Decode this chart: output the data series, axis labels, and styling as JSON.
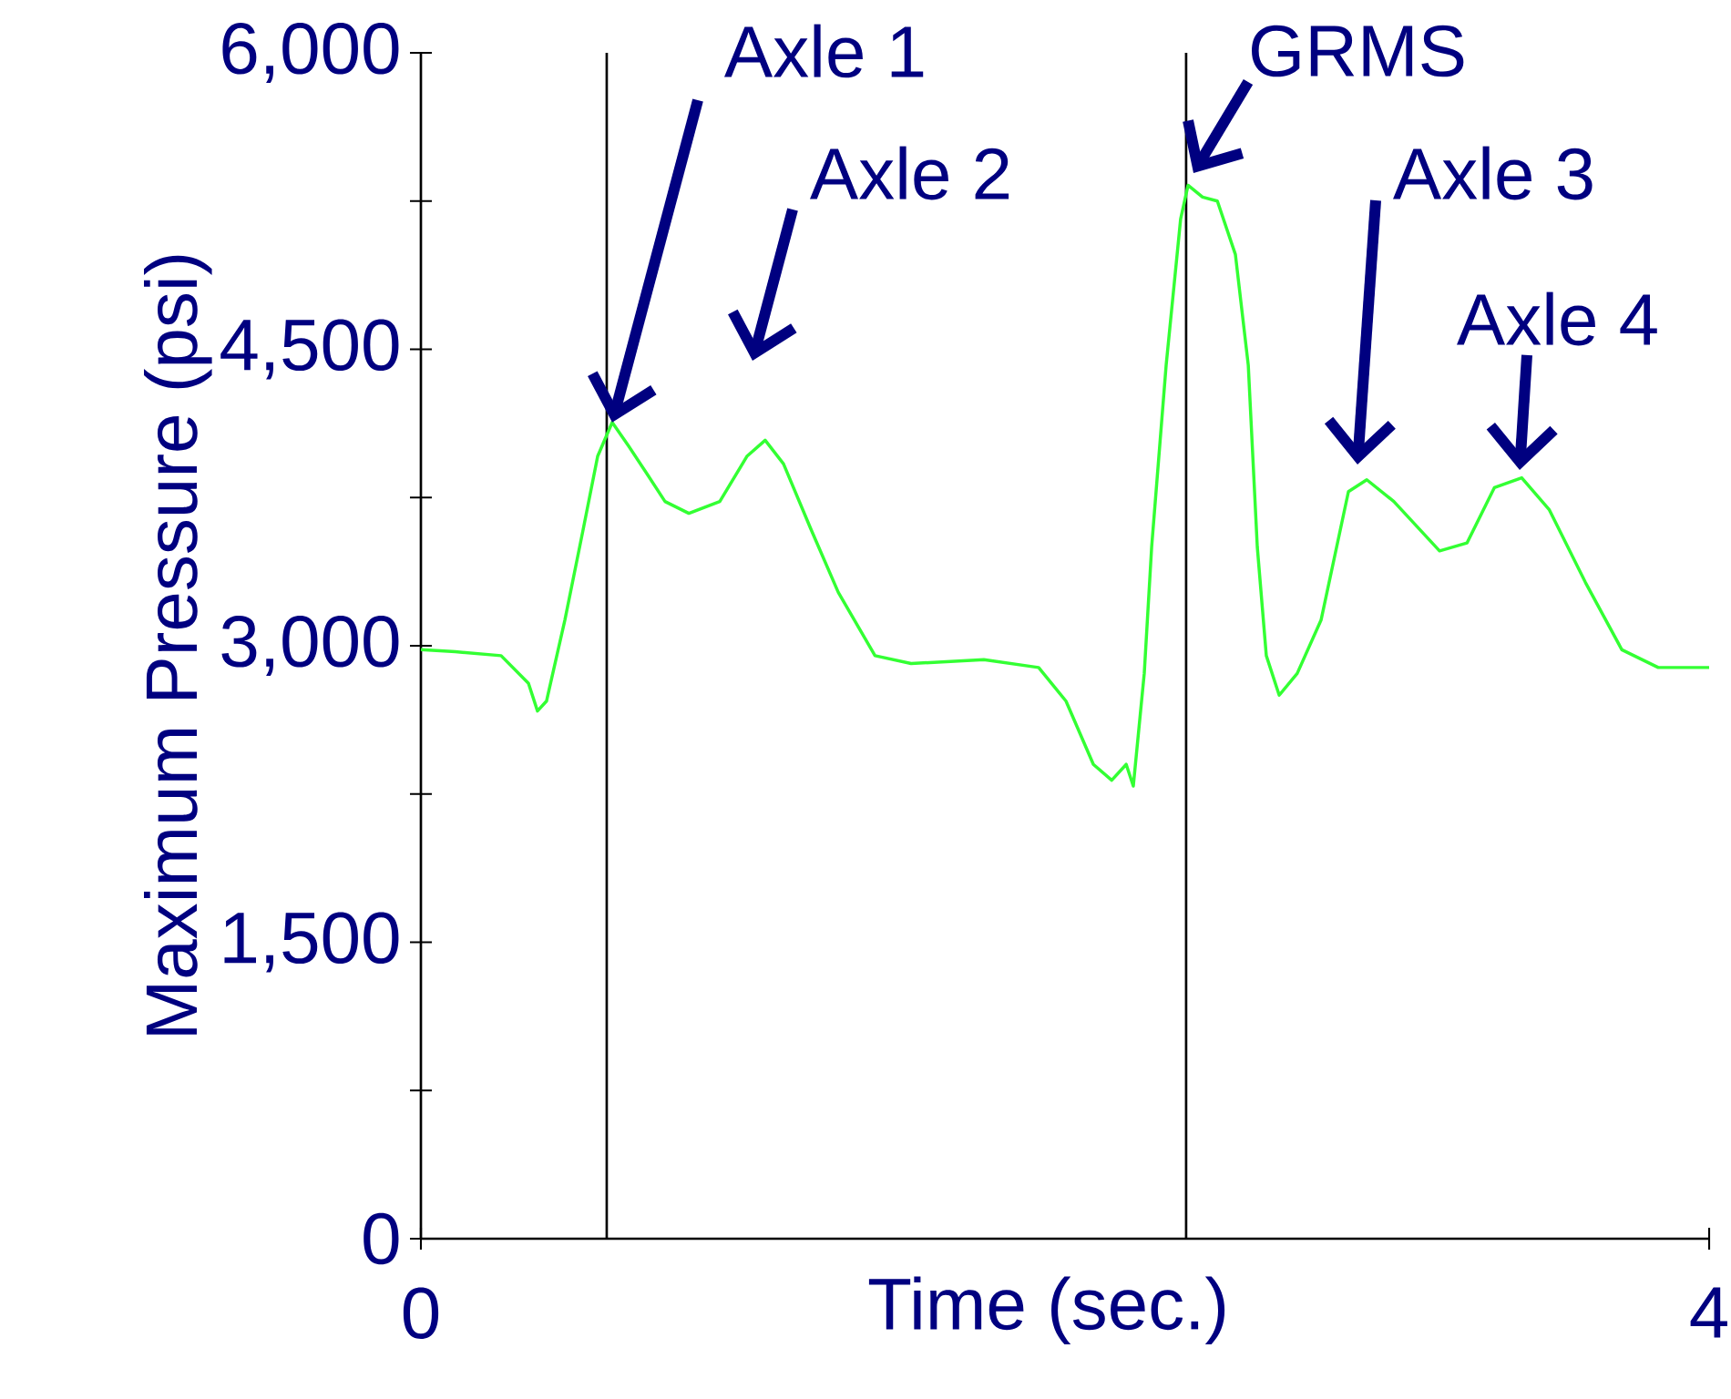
{
  "chart_data": {
    "type": "line",
    "xlabel": "Time (sec.)",
    "ylabel": "Maximum Pressure (psi)",
    "xlim": [
      0,
      4
    ],
    "xticks": [
      0,
      4
    ],
    "ylim": [
      0,
      6000
    ],
    "yticks": [
      {
        "value": 0,
        "label": "0"
      },
      {
        "value": 750,
        "label": null
      },
      {
        "value": 1500,
        "label": "1,500"
      },
      {
        "value": 2250,
        "label": null
      },
      {
        "value": 3000,
        "label": "3,000"
      },
      {
        "value": 3750,
        "label": null
      },
      {
        "value": 4500,
        "label": "4,500"
      },
      {
        "value": 5250,
        "label": null
      },
      {
        "value": 6000,
        "label": "6,000"
      }
    ],
    "marker": "none",
    "line_style": "solid",
    "series": [
      {
        "color": "#33ff33",
        "x": [
          0,
          0.107,
          0.249,
          0.334,
          0.362,
          0.39,
          0.447,
          0.504,
          0.549,
          0.594,
          0.645,
          0.702,
          0.758,
          0.832,
          0.928,
          1.013,
          1.069,
          1.126,
          1.211,
          1.296,
          1.41,
          1.522,
          1.748,
          1.918,
          2.003,
          2.088,
          2.145,
          2.19,
          2.212,
          2.246,
          2.269,
          2.314,
          2.359,
          2.382,
          2.427,
          2.473,
          2.529,
          2.569,
          2.597,
          2.625,
          2.665,
          2.721,
          2.795,
          2.88,
          2.937,
          3.021,
          3.163,
          3.248,
          3.333,
          3.418,
          3.503,
          3.616,
          3.729,
          3.842,
          4
        ],
        "values": [
          2980,
          2970,
          2950,
          2810,
          2670,
          2720,
          3130,
          3590,
          3960,
          4130,
          4010,
          3870,
          3730,
          3670,
          3730,
          3960,
          4040,
          3920,
          3590,
          3270,
          2950,
          2910,
          2930,
          2890,
          2720,
          2400,
          2320,
          2400,
          2290,
          2860,
          3500,
          4420,
          5160,
          5330,
          5270,
          5250,
          4980,
          4420,
          3500,
          2950,
          2750,
          2860,
          3130,
          3780,
          3840,
          3730,
          3480,
          3520,
          3800,
          3850,
          3690,
          3320,
          2980,
          2890,
          2890
        ]
      }
    ],
    "ref_lines": [
      {
        "axis": "x",
        "value": 0.577,
        "color": "#000000"
      },
      {
        "axis": "x",
        "value": 2.376,
        "color": "#000000"
      }
    ],
    "annotations": [
      {
        "text": "Axle 1",
        "x": 0.594,
        "y": 4130
      },
      "Axle 2",
      "GRMS",
      "Axle 3",
      "Axle 4"
    ]
  }
}
